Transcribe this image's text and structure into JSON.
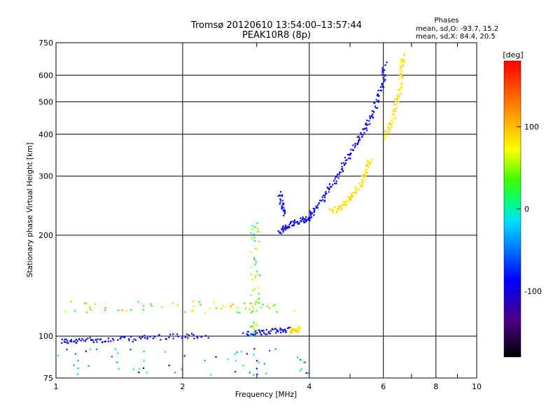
{
  "chart_data": {
    "type": "scatter",
    "title": "Tromsø 20120610 13:54:00–13:57:44",
    "subtitle": "PEAK10R8 (8p)",
    "xlabel": "Frequency [MHz]",
    "ylabel": "Stationary phase Virtual Height [km]",
    "xscale": "log",
    "yscale": "log",
    "xlim": [
      1,
      10
    ],
    "ylim": [
      75,
      750
    ],
    "x_ticks": [
      1,
      2,
      4,
      6,
      8,
      10
    ],
    "x_tick_labels": [
      "1",
      "2",
      "4",
      "6",
      "8",
      "10"
    ],
    "y_ticks": [
      75,
      100,
      200,
      300,
      400,
      500,
      600,
      750
    ],
    "y_tick_labels": [
      "75",
      "100",
      "200",
      "300",
      "400",
      "500",
      "600",
      "750"
    ],
    "grid": true,
    "phase_stats": {
      "title": "Phases",
      "line_o": "mean, sd,O: -93.7, 15.2",
      "line_x": "mean, sd,X:  84.4, 20.5"
    },
    "colorbar": {
      "label": "[deg]",
      "range": [
        -180,
        180
      ],
      "ticks": [
        100,
        0,
        -100
      ],
      "tick_labels": [
        "100",
        "0",
        "-100"
      ]
    },
    "traces": [
      {
        "mode": "O",
        "phase": -90,
        "segments": [
          [
            [
              1.03,
              97
            ],
            [
              1.1,
              96
            ],
            [
              1.2,
              98
            ],
            [
              1.3,
              97
            ],
            [
              1.5,
              98
            ],
            [
              1.7,
              99
            ],
            [
              2.0,
              100
            ],
            [
              2.3,
              100
            ]
          ],
          [
            [
              2.8,
              101
            ],
            [
              3.0,
              102
            ],
            [
              3.2,
              103
            ],
            [
              3.4,
              104
            ],
            [
              3.6,
              105
            ]
          ],
          [
            [
              3.4,
              205
            ],
            [
              3.5,
              210
            ],
            [
              3.6,
              215
            ],
            [
              3.75,
              220
            ],
            [
              3.9,
              225
            ]
          ],
          [
            [
              3.4,
              265
            ],
            [
              3.45,
              245
            ],
            [
              3.5,
              230
            ]
          ],
          [
            [
              3.9,
              220
            ],
            [
              4.0,
              225
            ],
            [
              4.1,
              235
            ],
            [
              4.3,
              255
            ],
            [
              4.5,
              280
            ],
            [
              4.7,
              305
            ],
            [
              4.9,
              335
            ],
            [
              5.1,
              365
            ],
            [
              5.3,
              395
            ],
            [
              5.5,
              430
            ],
            [
              5.7,
              470
            ],
            [
              5.85,
              520
            ],
            [
              6.0,
              580
            ],
            [
              6.05,
              650
            ]
          ]
        ]
      },
      {
        "mode": "X",
        "phase": 85,
        "segments": [
          [
            [
              4.5,
              235
            ],
            [
              4.7,
              240
            ],
            [
              4.9,
              250
            ],
            [
              5.0,
              260
            ],
            [
              5.2,
              275
            ],
            [
              5.4,
              295
            ],
            [
              5.5,
              320
            ],
            [
              5.6,
              335
            ]
          ],
          [
            [
              6.0,
              390
            ],
            [
              6.2,
              420
            ],
            [
              6.4,
              470
            ],
            [
              6.5,
              520
            ],
            [
              6.6,
              580
            ],
            [
              6.65,
              640
            ],
            [
              6.7,
              690
            ]
          ],
          [
            [
              3.6,
              104
            ],
            [
              3.7,
              104
            ],
            [
              3.8,
              105
            ]
          ]
        ]
      }
    ],
    "noise_bands": [
      {
        "x": [
          1.05,
          3.8
        ],
        "y": [
          117,
          127
        ],
        "phase": 70
      },
      {
        "x": [
          2.9,
          3.05
        ],
        "y": [
          100,
          220
        ],
        "phase": 40
      },
      {
        "x": [
          1.0,
          4.0
        ],
        "y": [
          76,
          92
        ],
        "phase": -40
      }
    ]
  }
}
